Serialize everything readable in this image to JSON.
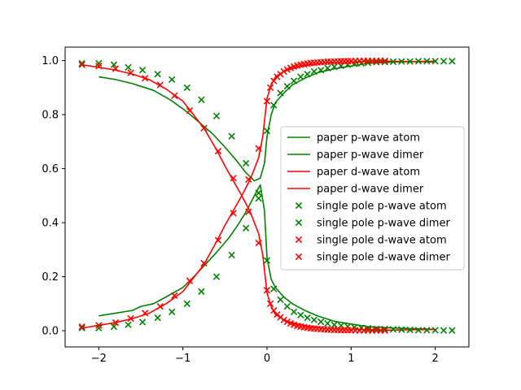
{
  "chart_data": {
    "type": "line",
    "title": "",
    "xlabel": "",
    "ylabel": "",
    "xlim": [
      -2.4,
      2.4
    ],
    "ylim": [
      -0.06,
      1.05
    ],
    "xticks": [
      -2,
      -1,
      0,
      1,
      2
    ],
    "xtick_labels": [
      "−2",
      "−1",
      "0",
      "1",
      "2"
    ],
    "yticks": [
      0.0,
      0.2,
      0.4,
      0.6,
      0.8,
      1.0
    ],
    "ytick_labels": [
      "0.0",
      "0.2",
      "0.4",
      "0.6",
      "0.8",
      "1.0"
    ],
    "grid": false,
    "legend_position": "center-right",
    "series": [
      {
        "name": "paper p-wave atom",
        "kind": "line",
        "color": "#008000",
        "points": [
          [
            -2.0,
            0.94
          ],
          [
            -1.8,
            0.93
          ],
          [
            -1.6,
            0.915
          ],
          [
            -1.35,
            0.89
          ],
          [
            -1.15,
            0.855
          ],
          [
            -0.95,
            0.81
          ],
          [
            -0.8,
            0.77
          ],
          [
            -0.65,
            0.73
          ],
          [
            -0.5,
            0.68
          ],
          [
            -0.35,
            0.625
          ],
          [
            -0.25,
            0.585
          ],
          [
            -0.15,
            0.555
          ],
          [
            -0.08,
            0.565
          ],
          [
            -0.03,
            0.62
          ],
          [
            0.0,
            0.72
          ],
          [
            0.05,
            0.8
          ],
          [
            0.1,
            0.845
          ],
          [
            0.2,
            0.88
          ],
          [
            0.3,
            0.91
          ],
          [
            0.45,
            0.935
          ],
          [
            0.6,
            0.955
          ],
          [
            0.8,
            0.97
          ],
          [
            1.0,
            0.98
          ],
          [
            1.2,
            0.99
          ],
          [
            1.5,
            0.995
          ],
          [
            2.0,
            0.998
          ]
        ]
      },
      {
        "name": "paper p-wave dimer",
        "kind": "line",
        "color": "#008000",
        "points": [
          [
            -2.0,
            0.055
          ],
          [
            -1.8,
            0.065
          ],
          [
            -1.6,
            0.075
          ],
          [
            -1.5,
            0.09
          ],
          [
            -1.35,
            0.1
          ],
          [
            -1.2,
            0.125
          ],
          [
            -1.0,
            0.16
          ],
          [
            -0.9,
            0.19
          ],
          [
            -0.75,
            0.24
          ],
          [
            -0.6,
            0.29
          ],
          [
            -0.45,
            0.345
          ],
          [
            -0.35,
            0.39
          ],
          [
            -0.25,
            0.44
          ],
          [
            -0.15,
            0.5
          ],
          [
            -0.08,
            0.54
          ],
          [
            -0.03,
            0.445
          ],
          [
            0.0,
            0.27
          ],
          [
            0.05,
            0.19
          ],
          [
            0.1,
            0.16
          ],
          [
            0.2,
            0.125
          ],
          [
            0.3,
            0.1
          ],
          [
            0.45,
            0.075
          ],
          [
            0.6,
            0.055
          ],
          [
            0.8,
            0.035
          ],
          [
            1.0,
            0.025
          ],
          [
            1.2,
            0.015
          ],
          [
            1.5,
            0.01
          ],
          [
            2.0,
            0.005
          ]
        ]
      },
      {
        "name": "paper d-wave atom",
        "kind": "line",
        "color": "#ff0000",
        "points": [
          [
            -2.2,
            0.985
          ],
          [
            -2.0,
            0.975
          ],
          [
            -1.8,
            0.965
          ],
          [
            -1.6,
            0.95
          ],
          [
            -1.4,
            0.93
          ],
          [
            -1.2,
            0.895
          ],
          [
            -1.0,
            0.85
          ],
          [
            -0.9,
            0.81
          ],
          [
            -0.75,
            0.75
          ],
          [
            -0.6,
            0.67
          ],
          [
            -0.5,
            0.61
          ],
          [
            -0.4,
            0.555
          ],
          [
            -0.3,
            0.5
          ],
          [
            -0.2,
            0.44
          ],
          [
            -0.1,
            0.36
          ],
          [
            -0.05,
            0.28
          ],
          [
            0.0,
            0.14
          ],
          [
            0.05,
            0.09
          ],
          [
            0.1,
            0.06
          ],
          [
            0.2,
            0.04
          ],
          [
            0.3,
            0.03
          ],
          [
            0.5,
            0.015
          ],
          [
            0.7,
            0.008
          ],
          [
            1.0,
            0.005
          ],
          [
            1.4,
            0.002
          ],
          [
            2.0,
            0.005
          ]
        ]
      },
      {
        "name": "paper d-wave dimer",
        "kind": "line",
        "color": "#ff0000",
        "points": [
          [
            -2.2,
            0.01
          ],
          [
            -2.0,
            0.02
          ],
          [
            -1.8,
            0.03
          ],
          [
            -1.6,
            0.045
          ],
          [
            -1.4,
            0.065
          ],
          [
            -1.2,
            0.1
          ],
          [
            -1.0,
            0.145
          ],
          [
            -0.9,
            0.185
          ],
          [
            -0.75,
            0.245
          ],
          [
            -0.6,
            0.33
          ],
          [
            -0.5,
            0.39
          ],
          [
            -0.4,
            0.445
          ],
          [
            -0.3,
            0.5
          ],
          [
            -0.2,
            0.56
          ],
          [
            -0.1,
            0.64
          ],
          [
            -0.05,
            0.72
          ],
          [
            0.0,
            0.86
          ],
          [
            0.05,
            0.91
          ],
          [
            0.1,
            0.94
          ],
          [
            0.2,
            0.96
          ],
          [
            0.3,
            0.97
          ],
          [
            0.5,
            0.985
          ],
          [
            0.7,
            0.992
          ],
          [
            1.0,
            0.995
          ],
          [
            1.4,
            0.998
          ],
          [
            2.0,
            0.995
          ]
        ]
      },
      {
        "name": "single pole p-wave atom",
        "kind": "scatter",
        "color": "#008000",
        "points": [
          [
            -2.2,
            0.99
          ],
          [
            -2.0,
            0.99
          ],
          [
            -1.82,
            0.985
          ],
          [
            -1.65,
            0.975
          ],
          [
            -1.48,
            0.965
          ],
          [
            -1.3,
            0.95
          ],
          [
            -1.13,
            0.93
          ],
          [
            -0.95,
            0.9
          ],
          [
            -0.78,
            0.855
          ],
          [
            -0.6,
            0.795
          ],
          [
            -0.42,
            0.72
          ],
          [
            -0.25,
            0.62
          ],
          [
            -0.1,
            0.51
          ],
          [
            0.0,
            0.74
          ],
          [
            0.08,
            0.835
          ],
          [
            0.16,
            0.88
          ],
          [
            0.24,
            0.905
          ],
          [
            0.32,
            0.925
          ],
          [
            0.4,
            0.94
          ],
          [
            0.48,
            0.95
          ],
          [
            0.56,
            0.96
          ],
          [
            0.64,
            0.965
          ],
          [
            0.72,
            0.972
          ],
          [
            0.8,
            0.977
          ],
          [
            0.88,
            0.981
          ],
          [
            0.96,
            0.985
          ],
          [
            1.04,
            0.988
          ],
          [
            1.12,
            0.99
          ],
          [
            1.2,
            0.992
          ],
          [
            1.3,
            0.994
          ],
          [
            1.4,
            0.995
          ],
          [
            1.5,
            0.996
          ],
          [
            1.6,
            0.997
          ],
          [
            1.7,
            0.997
          ],
          [
            1.8,
            0.998
          ],
          [
            1.9,
            0.998
          ],
          [
            2.0,
            0.998
          ],
          [
            2.1,
            0.998
          ],
          [
            2.2,
            0.998
          ]
        ]
      },
      {
        "name": "single pole p-wave dimer",
        "kind": "scatter",
        "color": "#008000",
        "points": [
          [
            -2.2,
            0.01
          ],
          [
            -2.0,
            0.01
          ],
          [
            -1.82,
            0.015
          ],
          [
            -1.65,
            0.022
          ],
          [
            -1.48,
            0.032
          ],
          [
            -1.3,
            0.048
          ],
          [
            -1.13,
            0.07
          ],
          [
            -0.95,
            0.1
          ],
          [
            -0.78,
            0.145
          ],
          [
            -0.6,
            0.2
          ],
          [
            -0.42,
            0.28
          ],
          [
            -0.25,
            0.38
          ],
          [
            -0.1,
            0.49
          ],
          [
            0.0,
            0.26
          ],
          [
            0.08,
            0.155
          ],
          [
            0.16,
            0.115
          ],
          [
            0.24,
            0.09
          ],
          [
            0.32,
            0.07
          ],
          [
            0.4,
            0.058
          ],
          [
            0.48,
            0.048
          ],
          [
            0.56,
            0.04
          ],
          [
            0.64,
            0.033
          ],
          [
            0.72,
            0.027
          ],
          [
            0.8,
            0.022
          ],
          [
            0.88,
            0.019
          ],
          [
            0.96,
            0.016
          ],
          [
            1.04,
            0.013
          ],
          [
            1.12,
            0.011
          ],
          [
            1.2,
            0.009
          ],
          [
            1.3,
            0.007
          ],
          [
            1.4,
            0.006
          ],
          [
            1.5,
            0.005
          ],
          [
            1.6,
            0.004
          ],
          [
            1.7,
            0.003
          ],
          [
            1.8,
            0.002
          ],
          [
            1.9,
            0.002
          ],
          [
            2.0,
            0.002
          ],
          [
            2.1,
            0.001
          ],
          [
            2.2,
            0.001
          ]
        ]
      },
      {
        "name": "single pole d-wave atom",
        "kind": "scatter",
        "color": "#ff0000",
        "points": [
          [
            -2.2,
            0.985
          ],
          [
            -2.0,
            0.98
          ],
          [
            -1.8,
            0.97
          ],
          [
            -1.62,
            0.955
          ],
          [
            -1.45,
            0.935
          ],
          [
            -1.27,
            0.91
          ],
          [
            -1.1,
            0.87
          ],
          [
            -0.92,
            0.815
          ],
          [
            -0.75,
            0.75
          ],
          [
            -0.58,
            0.665
          ],
          [
            -0.4,
            0.565
          ],
          [
            -0.22,
            0.44
          ],
          [
            -0.1,
            0.325
          ],
          [
            0.0,
            0.15
          ],
          [
            0.04,
            0.1
          ],
          [
            0.08,
            0.075
          ],
          [
            0.12,
            0.06
          ],
          [
            0.16,
            0.05
          ],
          [
            0.2,
            0.04
          ],
          [
            0.24,
            0.033
          ],
          [
            0.28,
            0.027
          ],
          [
            0.32,
            0.022
          ],
          [
            0.36,
            0.018
          ],
          [
            0.4,
            0.015
          ],
          [
            0.44,
            0.013
          ],
          [
            0.48,
            0.011
          ],
          [
            0.52,
            0.009
          ],
          [
            0.56,
            0.008
          ],
          [
            0.6,
            0.007
          ],
          [
            0.64,
            0.006
          ],
          [
            0.68,
            0.005
          ],
          [
            0.72,
            0.004
          ],
          [
            0.76,
            0.004
          ],
          [
            0.8,
            0.003
          ],
          [
            0.84,
            0.003
          ],
          [
            0.88,
            0.002
          ],
          [
            0.92,
            0.002
          ],
          [
            0.96,
            0.002
          ],
          [
            1.0,
            0.002
          ],
          [
            1.05,
            0.001
          ],
          [
            1.1,
            0.001
          ],
          [
            1.15,
            0.001
          ],
          [
            1.2,
            0.001
          ],
          [
            1.25,
            0.001
          ],
          [
            1.3,
            0.001
          ],
          [
            1.35,
            0.001
          ],
          [
            1.4,
            0.001
          ]
        ]
      },
      {
        "name": "single pole d-wave dimer",
        "kind": "scatter",
        "color": "#ff0000",
        "points": [
          [
            -2.2,
            0.015
          ],
          [
            -2.0,
            0.02
          ],
          [
            -1.8,
            0.03
          ],
          [
            -1.62,
            0.045
          ],
          [
            -1.45,
            0.065
          ],
          [
            -1.27,
            0.09
          ],
          [
            -1.1,
            0.13
          ],
          [
            -0.92,
            0.185
          ],
          [
            -0.75,
            0.25
          ],
          [
            -0.58,
            0.335
          ],
          [
            -0.4,
            0.435
          ],
          [
            -0.22,
            0.56
          ],
          [
            -0.1,
            0.675
          ],
          [
            0.0,
            0.85
          ],
          [
            0.04,
            0.9
          ],
          [
            0.08,
            0.925
          ],
          [
            0.12,
            0.94
          ],
          [
            0.16,
            0.95
          ],
          [
            0.2,
            0.96
          ],
          [
            0.24,
            0.967
          ],
          [
            0.28,
            0.973
          ],
          [
            0.32,
            0.978
          ],
          [
            0.36,
            0.982
          ],
          [
            0.4,
            0.985
          ],
          [
            0.44,
            0.987
          ],
          [
            0.48,
            0.989
          ],
          [
            0.52,
            0.991
          ],
          [
            0.56,
            0.992
          ],
          [
            0.6,
            0.993
          ],
          [
            0.64,
            0.994
          ],
          [
            0.68,
            0.995
          ],
          [
            0.72,
            0.996
          ],
          [
            0.76,
            0.996
          ],
          [
            0.8,
            0.997
          ],
          [
            0.84,
            0.997
          ],
          [
            0.88,
            0.998
          ],
          [
            0.92,
            0.998
          ],
          [
            0.96,
            0.998
          ],
          [
            1.0,
            0.998
          ],
          [
            1.05,
            0.999
          ],
          [
            1.1,
            0.999
          ],
          [
            1.15,
            0.999
          ],
          [
            1.2,
            0.999
          ],
          [
            1.25,
            0.999
          ],
          [
            1.3,
            0.999
          ],
          [
            1.35,
            0.999
          ],
          [
            1.4,
            0.999
          ]
        ]
      }
    ]
  }
}
